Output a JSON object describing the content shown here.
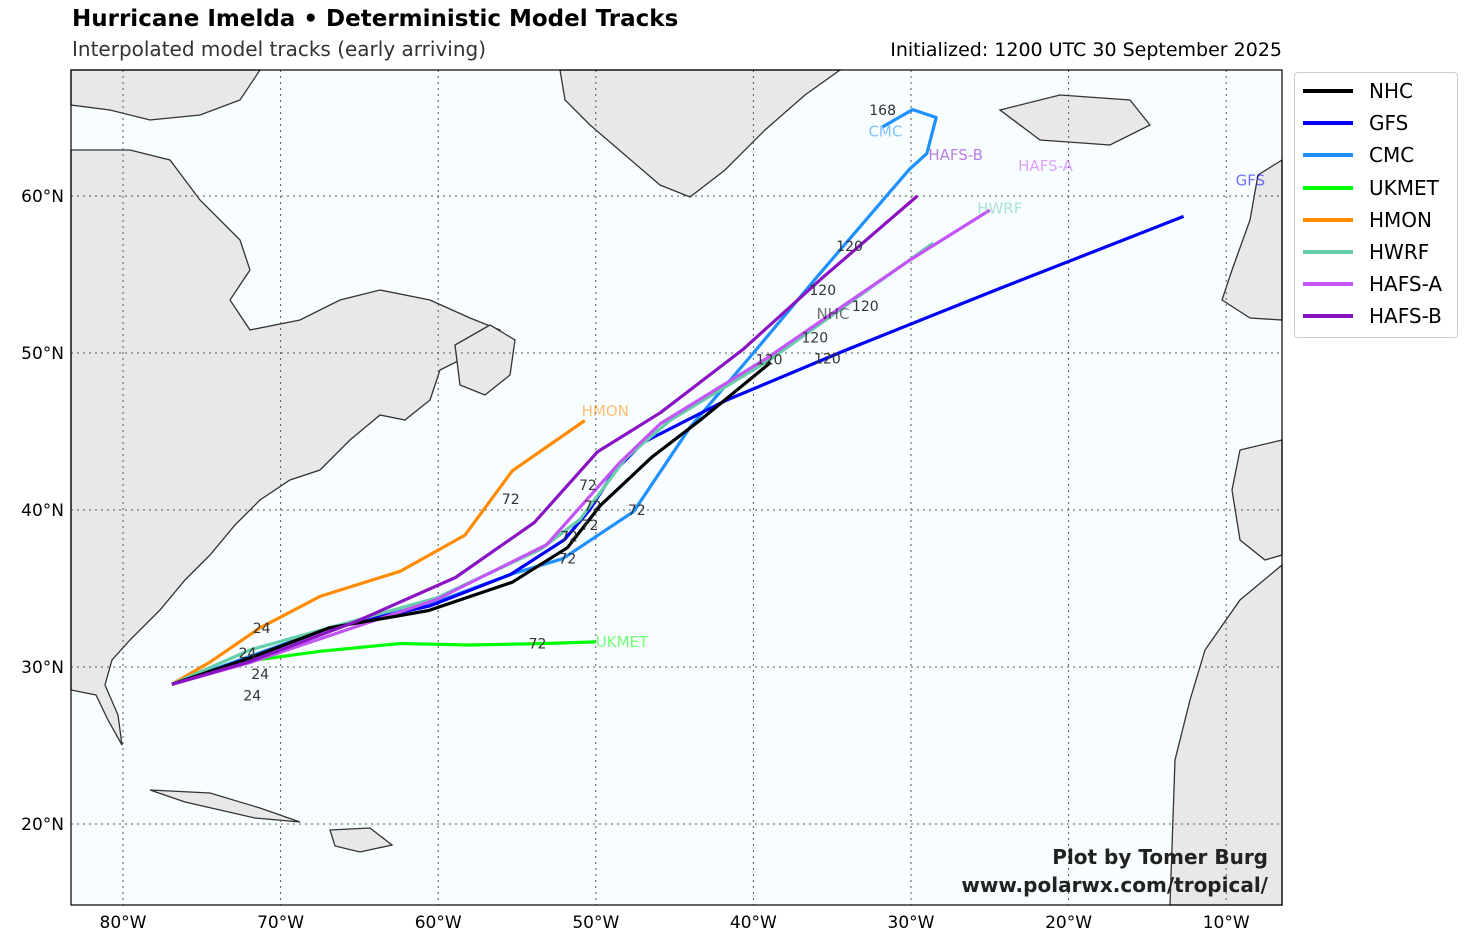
{
  "header": {
    "title": "Hurricane Imelda • Deterministic Model Tracks",
    "subtitle": "Interpolated model tracks (early arriving)",
    "initialized": "Initialized: 1200 UTC 30 September 2025"
  },
  "credit": {
    "line1": "Plot by Tomer Burg",
    "line2": "www.polarwx.com/tropical/"
  },
  "chart_data": {
    "type": "line",
    "projection": "lon-lat map",
    "xlim": [
      -83.3,
      -6.4
    ],
    "ylim": [
      14.6,
      67.7
    ],
    "grid": true,
    "legend_placement": "outside-top-right",
    "x_ticks": [
      "80°W",
      "70°W",
      "60°W",
      "50°W",
      "40°W",
      "30°W",
      "20°W",
      "10°W"
    ],
    "x_tick_values": [
      -80,
      -70,
      -60,
      -50,
      -40,
      -30,
      -20,
      -10
    ],
    "y_ticks": [
      "20°N",
      "30°N",
      "40°N",
      "50°N",
      "60°N"
    ],
    "y_tick_values": [
      20,
      30,
      40,
      50,
      60
    ],
    "colors": {
      "land": "#e8e8e8",
      "ocean": "#f8fdff",
      "coast": "#333333"
    },
    "series": [
      {
        "name": "NHC",
        "color": "#000000",
        "lon": [
          -76.9,
          -71.9,
          -66.9,
          -60.6,
          -55.3,
          -51.8,
          -49.7,
          -46.4,
          -43.4,
          -38.9
        ],
        "lat": [
          28.9,
          30.6,
          32.5,
          33.6,
          35.4,
          37.6,
          40.3,
          43.4,
          45.7,
          49.4
        ]
      },
      {
        "name": "GFS",
        "color": "#0000ff",
        "lon": [
          -76.9,
          -71.9,
          -66.9,
          -60.5,
          -55.4,
          -52.0,
          -50.4,
          -48.8,
          -47.0,
          -41.7,
          -34.1,
          -24.4,
          -12.7
        ],
        "lat": [
          28.9,
          30.6,
          32.5,
          33.9,
          35.9,
          38.1,
          40.0,
          42.5,
          44.3,
          47.0,
          50.2,
          54.1,
          58.7
        ]
      },
      {
        "name": "CMC",
        "color": "#1e90ff",
        "lon": [
          -76.9,
          -71.9,
          -66.9,
          -60.5,
          -55.4,
          -52.1,
          -47.6,
          -44.0,
          -40.0,
          -36.0,
          -30.1,
          -29.0,
          -28.4,
          -29.9,
          -31.8
        ],
        "lat": [
          28.9,
          30.7,
          32.5,
          34.0,
          35.9,
          36.9,
          39.9,
          45.3,
          50.0,
          54.8,
          61.7,
          62.7,
          65.0,
          65.5,
          64.4
        ]
      },
      {
        "name": "UKMET",
        "color": "#00ff00",
        "lon": [
          -76.9,
          -71.9,
          -67.5,
          -62.4,
          -58.0,
          -53.2,
          -50.0
        ],
        "lat": [
          28.9,
          30.4,
          31.0,
          31.5,
          31.4,
          31.5,
          31.6
        ]
      },
      {
        "name": "HMON",
        "color": "#ff8c00",
        "lon": [
          -76.9,
          -74.5,
          -71.3,
          -67.5,
          -62.4,
          -58.3,
          -55.3,
          -50.7
        ],
        "lat": [
          28.9,
          30.3,
          32.5,
          34.5,
          36.1,
          38.4,
          42.5,
          45.7
        ]
      },
      {
        "name": "HWRF",
        "color": "#66cdaa",
        "lon": [
          -76.9,
          -71.9,
          -60.1,
          -53.5,
          -51.0,
          -48.1,
          -45.3,
          -38.9,
          -28.6
        ],
        "lat": [
          28.9,
          31.1,
          34.4,
          37.5,
          39.4,
          43.3,
          45.7,
          49.6,
          57.0
        ]
      },
      {
        "name": "HAFS-A",
        "color": "#c355f5",
        "lon": [
          -76.9,
          -71.9,
          -60.1,
          -53.1,
          -48.5,
          -45.9,
          -39.1,
          -30.1,
          -25.0
        ],
        "lat": [
          28.9,
          30.3,
          34.3,
          37.8,
          43.0,
          45.5,
          49.7,
          55.9,
          59.1
        ]
      },
      {
        "name": "HAFS-B",
        "color": "#8a14c4",
        "lon": [
          -76.9,
          -72.1,
          -65.2,
          -58.9,
          -53.9,
          -49.9,
          -45.9,
          -40.7,
          -35.6,
          -29.6
        ],
        "lat": [
          28.9,
          30.3,
          32.9,
          35.7,
          39.2,
          43.7,
          46.2,
          50.2,
          54.8,
          60.0
        ]
      }
    ],
    "hour_labels": [
      {
        "text": "24",
        "lon": -71.2,
        "lat": 32.5
      },
      {
        "text": "24",
        "lon": -72.1,
        "lat": 30.9
      },
      {
        "text": "24",
        "lon": -71.3,
        "lat": 30.9
      },
      {
        "text": "24",
        "lon": -71.8,
        "lat": 30.4
      },
      {
        "text": "72",
        "lon": -55.4,
        "lat": 40.7
      },
      {
        "text": "72",
        "lon": -50.5,
        "lat": 41.6
      },
      {
        "text": "72",
        "lon": -50.2,
        "lat": 40.7
      },
      {
        "text": "72",
        "lon": -50.4,
        "lat": 39.5
      },
      {
        "text": "72",
        "lon": -51.7,
        "lat": 38.3
      },
      {
        "text": "72",
        "lon": -51.8,
        "lat": 37.8
      },
      {
        "text": "72",
        "lon": -47.4,
        "lat": 40.0
      },
      {
        "text": "72",
        "lon": -53.7,
        "lat": 31.5
      },
      {
        "text": "120",
        "lon": -33.9,
        "lat": 56.8
      },
      {
        "text": "120",
        "lon": -35.6,
        "lat": 54.0
      },
      {
        "text": "120",
        "lon": -32.9,
        "lat": 53.0
      },
      {
        "text": "120",
        "lon": -36.1,
        "lat": 51.0
      },
      {
        "text": "120",
        "lon": -39.0,
        "lat": 49.6
      },
      {
        "text": "120",
        "lon": -35.3,
        "lat": 50.1
      },
      {
        "text": "168",
        "lon": -31.8,
        "lat": 64.6
      }
    ],
    "model_labels": [
      {
        "text": "CMC",
        "lon": -32.7,
        "lat": 64.1,
        "color": "#1e90ff"
      },
      {
        "text": "HAFS-B",
        "lon": -28.9,
        "lat": 62.6,
        "color": "#8a14c4"
      },
      {
        "text": "HAFS-A",
        "lon": -23.2,
        "lat": 61.9,
        "color": "#c355f5"
      },
      {
        "text": "GFS",
        "lon": -9.4,
        "lat": 61.0,
        "color": "#0000ff"
      },
      {
        "text": "HWRF",
        "lon": -25.8,
        "lat": 59.2,
        "color": "#66cdaa"
      },
      {
        "text": "NHC",
        "lon": -36.0,
        "lat": 52.5,
        "color": "#000000"
      },
      {
        "text": "HMON",
        "lon": -50.9,
        "lat": 46.3,
        "color": "#ff8c00"
      },
      {
        "text": "UKMET",
        "lon": -50.0,
        "lat": 31.6,
        "color": "#00ff00"
      }
    ]
  }
}
